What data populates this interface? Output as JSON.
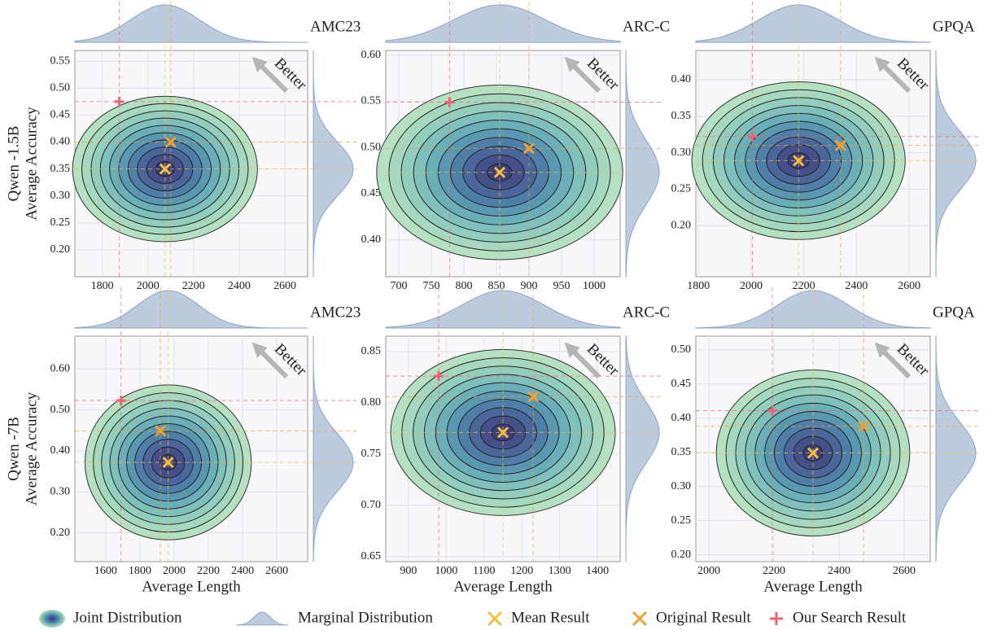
{
  "chart_data": [
    {
      "type": "joint_kde",
      "title": "AMC23",
      "annotation": "Better",
      "xlim": [
        1680,
        2700
      ],
      "ylim": [
        0.15,
        0.57
      ],
      "xticks": [
        1800,
        2000,
        2200,
        2400,
        2600
      ],
      "yticks": [
        {
          "value": 0.2,
          "label": "0.20"
        },
        0.25,
        {
          "value": 0.3,
          "label": "0.30"
        },
        0.35,
        {
          "value": 0.4,
          "label": "0.40"
        },
        0.45,
        {
          "value": 0.5,
          "label": "0.50"
        },
        0.55
      ],
      "x_sd": 150,
      "y_sd": 0.05,
      "series": [
        {
          "x": 2075,
          "y": 0.35
        },
        {
          "x": 2100,
          "y": 0.4
        },
        {
          "x": 1875,
          "y": 0.475
        }
      ]
    },
    {
      "type": "joint_kde",
      "title": "ARC-C",
      "annotation": "Better",
      "xlim": [
        680,
        1040
      ],
      "ylim": [
        0.36,
        0.605
      ],
      "xticks": [
        700,
        750,
        800,
        850,
        900,
        950,
        1000
      ],
      "yticks": [
        {
          "value": 0.4,
          "label": "0.40"
        },
        0.45,
        {
          "value": 0.5,
          "label": "0.50"
        },
        0.55,
        {
          "value": 0.6,
          "label": "0.60"
        }
      ],
      "x_sd": 70,
      "y_sd": 0.035,
      "series": [
        {
          "x": 855,
          "y": 0.473
        },
        {
          "x": 900,
          "y": 0.499
        },
        {
          "x": 778,
          "y": 0.549
        }
      ]
    },
    {
      "type": "joint_kde",
      "title": "GPQA",
      "annotation": "Better",
      "xlim": [
        1790,
        2680
      ],
      "ylim": [
        0.13,
        0.44
      ],
      "xticks": [
        1800,
        2000,
        2200,
        2400,
        2600
      ],
      "yticks": [
        {
          "value": 0.2,
          "label": "0.20"
        },
        0.25,
        {
          "value": 0.3,
          "label": "0.30"
        },
        0.35,
        {
          "value": 0.4,
          "label": "0.40"
        }
      ],
      "x_sd": 150,
      "y_sd": 0.04,
      "series": [
        {
          "x": 2180,
          "y": 0.289
        },
        {
          "x": 2340,
          "y": 0.31
        },
        {
          "x": 2005,
          "y": 0.322
        }
      ]
    },
    {
      "type": "joint_kde",
      "title": "AMC23",
      "annotation": "Better",
      "xlabel": "Average Length",
      "xlim": [
        1420,
        2780
      ],
      "ylim": [
        0.13,
        0.68
      ],
      "xticks": [
        1600,
        1800,
        2000,
        2200,
        2400,
        2600
      ],
      "yticks": [
        {
          "value": 0.2,
          "label": "0.20"
        },
        {
          "value": 0.3,
          "label": "0.30"
        },
        {
          "value": 0.4,
          "label": "0.40"
        },
        {
          "value": 0.5,
          "label": "0.50"
        },
        {
          "value": 0.6,
          "label": "0.60"
        }
      ],
      "x_sd": 180,
      "y_sd": 0.07,
      "series": [
        {
          "x": 1965,
          "y": 0.372
        },
        {
          "x": 1920,
          "y": 0.449
        },
        {
          "x": 1690,
          "y": 0.523
        }
      ]
    },
    {
      "type": "joint_kde",
      "title": "ARC-C",
      "annotation": "Better",
      "xlabel": "Average Length",
      "xlim": [
        840,
        1460
      ],
      "ylim": [
        0.645,
        0.865
      ],
      "xticks": [
        900,
        1000,
        1100,
        1200,
        1300,
        1400
      ],
      "yticks": [
        0.65,
        {
          "value": 0.7,
          "label": "0.70"
        },
        0.75,
        {
          "value": 0.8,
          "label": "0.80"
        },
        0.85
      ],
      "x_sd": 110,
      "y_sd": 0.03,
      "series": [
        {
          "x": 1150,
          "y": 0.771
        },
        {
          "x": 1230,
          "y": 0.806
        },
        {
          "x": 980,
          "y": 0.826
        }
      ]
    },
    {
      "type": "joint_kde",
      "title": "GPQA",
      "annotation": "Better",
      "xlabel": "Average Length",
      "xlim": [
        1960,
        2680
      ],
      "ylim": [
        0.19,
        0.52
      ],
      "xticks": [
        2000,
        2200,
        2400,
        2600
      ],
      "yticks": [
        {
          "value": 0.2,
          "label": "0.20"
        },
        0.25,
        {
          "value": 0.3,
          "label": "0.30"
        },
        0.35,
        {
          "value": 0.4,
          "label": "0.40"
        },
        0.45,
        {
          "value": 0.5,
          "label": "0.50"
        }
      ],
      "x_sd": 110,
      "y_sd": 0.045,
      "series": [
        {
          "x": 2320,
          "y": 0.349
        },
        {
          "x": 2475,
          "y": 0.388
        },
        {
          "x": 2195,
          "y": 0.411
        }
      ]
    }
  ],
  "rows": [
    {
      "label": "Qwen -1.5B",
      "ylabel": "Average Accuracy"
    },
    {
      "label": "Qwen -7B",
      "ylabel": "Average Accuracy"
    }
  ],
  "legend": [
    {
      "name": "Joint Distribution"
    },
    {
      "name": "Marginal Distribution"
    },
    {
      "name": "Mean Result",
      "color": "#f4c040",
      "marker": "x"
    },
    {
      "name": "Original Result",
      "color": "#f0a035",
      "marker": "x"
    },
    {
      "name": "Our Search Result",
      "color": "#f06272",
      "marker": "+"
    }
  ]
}
